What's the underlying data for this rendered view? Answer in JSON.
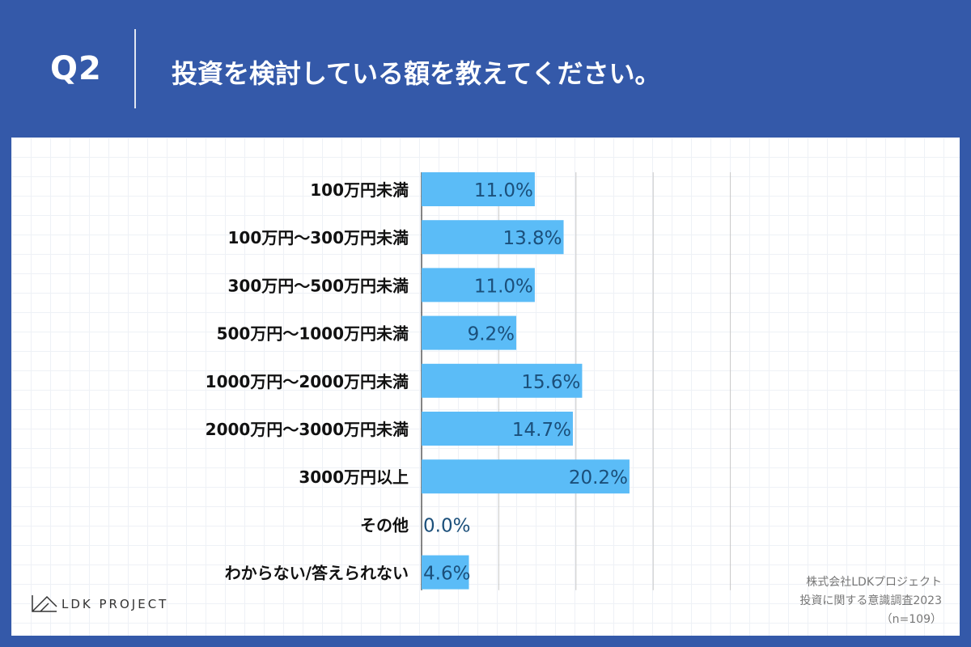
{
  "header": {
    "question_number": "Q2",
    "question_text": "投資を検討している額を教えてください。"
  },
  "footer": {
    "logo_text": "LDK PROJECT",
    "credit_company": "株式会社LDKプロジェクト",
    "credit_survey": "投資に関する意識調査2023",
    "credit_n": "（n=109）"
  },
  "colors": {
    "background": "#3459a9",
    "bar": "#5bbcf7",
    "value_label": "#1b4f7a",
    "category_label": "#111111",
    "gridline": "#c8c8c8"
  },
  "chart_data": {
    "type": "bar",
    "orientation": "horizontal",
    "categories": [
      "100万円未満",
      "100万円～300万円未満",
      "300万円～500万円未満",
      "500万円～1000万円未満",
      "1000万円～2000万円未満",
      "2000万円～3000万円未満",
      "3000万円以上",
      "その他",
      "わからない/答えられない"
    ],
    "values": [
      11.0,
      13.8,
      11.0,
      9.2,
      15.6,
      14.7,
      20.2,
      0.0,
      4.6
    ],
    "value_labels": [
      "11.0%",
      "13.8%",
      "11.0%",
      "9.2%",
      "15.6%",
      "14.7%",
      "20.2%",
      "0.0%",
      "4.6%"
    ],
    "xlim": [
      0,
      40
    ],
    "x_gridlines": [
      0,
      7.5,
      15,
      22.5,
      30
    ],
    "grid": true,
    "legend": "none",
    "title": "",
    "xlabel": "",
    "ylabel": ""
  }
}
